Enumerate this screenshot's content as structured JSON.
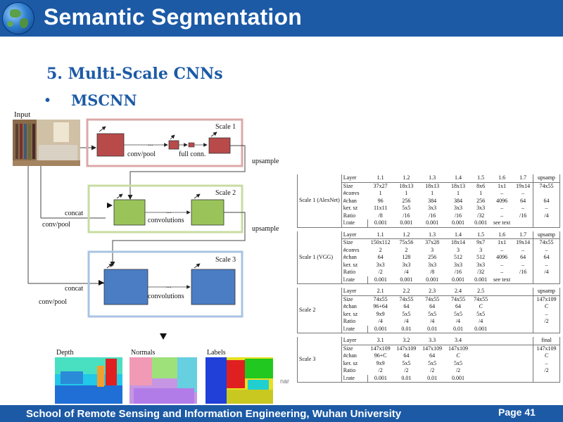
{
  "header": {
    "title": "Semantic Segmentation"
  },
  "section": {
    "heading": "5. Multi-Scale CNNs",
    "bullet": "MSCNN",
    "bullet_marker": "•"
  },
  "diagram": {
    "input_label": "Input",
    "scale1": {
      "label": "Scale 1",
      "dots": "...",
      "conv_pool": "conv/pool",
      "full_conn": "full conn.",
      "upsample": "upsample",
      "color": "#b94a4a"
    },
    "scale2": {
      "label": "Scale 2",
      "dots": "...",
      "concat": "concat",
      "conv_pool": "conv/pool",
      "convolutions": "convolutions",
      "upsample": "upsample",
      "color": "#9ac45a"
    },
    "scale3": {
      "label": "Scale 3",
      "dots": "...",
      "concat": "concat",
      "conv_pool": "conv/pool",
      "convolutions": "convolutions",
      "color": "#4a7dc4"
    },
    "outputs": {
      "depth": "Depth",
      "normals": "Normals",
      "labels": "Labels"
    },
    "stray_text": "nar"
  },
  "table": {
    "groups": [
      {
        "name": "Scale 1 (AlexNet)",
        "header": [
          "Layer",
          "1.1",
          "1.2",
          "1.3",
          "1.4",
          "1.5",
          "1.6",
          "1.7",
          "upsamp"
        ],
        "rows": [
          [
            "Size",
            "37x27",
            "18x13",
            "18x13",
            "18x13",
            "8x6",
            "1x1",
            "19x14",
            "74x55"
          ],
          [
            "#convs",
            "1",
            "1",
            "1",
            "1",
            "1",
            "–",
            "–",
            ""
          ],
          [
            "#chan",
            "96",
            "256",
            "384",
            "384",
            "256",
            "4096",
            "64",
            "64"
          ],
          [
            "ker. sz",
            "11x11",
            "5x5",
            "3x3",
            "3x3",
            "3x3",
            "–",
            "–",
            "–"
          ],
          [
            "Ratio",
            "/8",
            "/16",
            "/16",
            "/16",
            "/32",
            "–",
            "/16",
            "/4"
          ],
          [
            "l.rate",
            "0.001",
            "0.001",
            "0.001",
            "0.001",
            "0.001",
            "see text",
            "",
            ""
          ]
        ]
      },
      {
        "name": "Scale 1 (VGG)",
        "header": [
          "Layer",
          "1.1",
          "1.2",
          "1.3",
          "1.4",
          "1.5",
          "1.6",
          "1.7",
          "upsamp"
        ],
        "rows": [
          [
            "Size",
            "150x112",
            "75x56",
            "37x28",
            "18x14",
            "9x7",
            "1x1",
            "19x14",
            "74x55"
          ],
          [
            "#convs",
            "2",
            "2",
            "3",
            "3",
            "3",
            "–",
            "–",
            "–"
          ],
          [
            "#chan",
            "64",
            "128",
            "256",
            "512",
            "512",
            "4096",
            "64",
            "64"
          ],
          [
            "ker. sz",
            "3x3",
            "3x3",
            "3x3",
            "3x3",
            "3x3",
            "–",
            "–",
            "–"
          ],
          [
            "Ratio",
            "/2",
            "/4",
            "/8",
            "/16",
            "/32",
            "–",
            "/16",
            "/4"
          ],
          [
            "l.rate",
            "0.001",
            "0.001",
            "0.001",
            "0.001",
            "0.001",
            "see text",
            "",
            ""
          ]
        ]
      },
      {
        "name": "Scale 2",
        "header": [
          "Layer",
          "2.1",
          "2.2",
          "2.3",
          "2.4",
          "2.5",
          "",
          "",
          "upsamp"
        ],
        "rows": [
          [
            "Size",
            "74x55",
            "74x55",
            "74x55",
            "74x55",
            "74x55",
            "",
            "",
            "147x109"
          ],
          [
            "#chan",
            "96+64",
            "64",
            "64",
            "64",
            "C",
            "",
            "",
            "C"
          ],
          [
            "ker. sz",
            "9x9",
            "5x5",
            "5x5",
            "5x5",
            "5x5",
            "",
            "",
            "–"
          ],
          [
            "Ratio",
            "/4",
            "/4",
            "/4",
            "/4",
            "/4",
            "",
            "",
            "/2"
          ],
          [
            "l.rate",
            "0.001",
            "0.01",
            "0.01",
            "0.01",
            "0.001",
            "",
            "",
            ""
          ]
        ]
      },
      {
        "name": "Scale 3",
        "header": [
          "Layer",
          "3.1",
          "3.2",
          "3.3",
          "3.4",
          "",
          "",
          "",
          "final"
        ],
        "rows": [
          [
            "Size",
            "147x109",
            "147x109",
            "147x109",
            "147x109",
            "",
            "",
            "",
            "147x109"
          ],
          [
            "#chan",
            "96+C",
            "64",
            "64",
            "C",
            "",
            "",
            "",
            "C"
          ],
          [
            "ker. sz",
            "9x9",
            "5x5",
            "5x5",
            "5x5",
            "",
            "",
            "",
            "–"
          ],
          [
            "Ratio",
            "/2",
            "/2",
            "/2",
            "/2",
            "",
            "",
            "",
            "/2"
          ],
          [
            "l.rate",
            "0.001",
            "0.01",
            "0.01",
            "0.001",
            "",
            "",
            "",
            ""
          ]
        ]
      }
    ]
  },
  "footer": {
    "school": "School of Remote Sensing and Information Engineering, Wuhan University",
    "page": "Page 41"
  }
}
